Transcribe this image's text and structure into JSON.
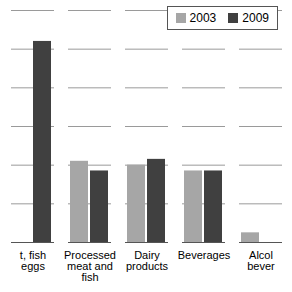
{
  "chart_data": {
    "type": "bar",
    "categories": [
      "t, fish\neggs",
      "Processed\nmeat and\nfish",
      "Dairy\nproducts",
      "Beverages",
      "Alcol\nbever"
    ],
    "series": [
      {
        "name": "2003",
        "color": "#a6a6a6",
        "values": [
          null,
          2.1,
          2.0,
          1.85,
          0.25
        ]
      },
      {
        "name": "2009",
        "color": "#404040",
        "values": [
          5.2,
          1.85,
          2.15,
          1.85,
          null
        ]
      }
    ],
    "ylim": [
      0,
      6
    ],
    "yticks": [
      0,
      1,
      2,
      3,
      4,
      5,
      6
    ],
    "grid": true,
    "tick_labels": "x",
    "legend": "top-right"
  }
}
